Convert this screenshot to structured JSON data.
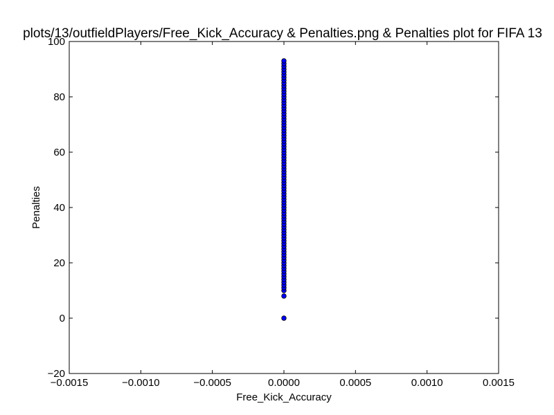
{
  "chart_data": {
    "type": "scatter",
    "title": "plots/13/outfieldPlayers/Free_Kick_Accuracy & Penalties.png & Penalties plot for FIFA 13",
    "xlabel": "Free_Kick_Accuracy",
    "ylabel": "Penalties",
    "xlim": [
      -0.0015,
      0.0015
    ],
    "ylim": [
      -20,
      100
    ],
    "xticks": [
      "−0.0015",
      "−0.0010",
      "−0.0005",
      "0.0000",
      "0.0005",
      "0.0010",
      "0.0015"
    ],
    "yticks": [
      "−20",
      "0",
      "20",
      "40",
      "60",
      "80",
      "100"
    ],
    "xtick_values": [
      -0.0015,
      -0.001,
      -0.0005,
      0,
      0.0005,
      0.001,
      0.0015
    ],
    "ytick_values": [
      -20,
      0,
      20,
      40,
      60,
      80,
      100
    ],
    "grid": false,
    "marker_color": "#0000ff",
    "marker_edge_color": "#000000",
    "series": [
      {
        "x": [
          0,
          0,
          0,
          0,
          0,
          0,
          0,
          0,
          0,
          0,
          0,
          0,
          0,
          0,
          0,
          0,
          0,
          0,
          0,
          0,
          0,
          0,
          0,
          0,
          0,
          0,
          0,
          0,
          0,
          0,
          0,
          0,
          0,
          0,
          0,
          0,
          0,
          0,
          0,
          0,
          0,
          0,
          0,
          0,
          0,
          0,
          0,
          0,
          0,
          0,
          0,
          0,
          0,
          0,
          0,
          0,
          0,
          0,
          0,
          0,
          0,
          0,
          0,
          0,
          0,
          0,
          0,
          0,
          0,
          0,
          0,
          0,
          0,
          0,
          0,
          0,
          0,
          0,
          0,
          0,
          0,
          0,
          0,
          0,
          0,
          0
        ],
        "y": [
          0,
          8,
          10,
          11,
          12,
          13,
          14,
          15,
          16,
          17,
          18,
          19,
          20,
          21,
          22,
          23,
          24,
          25,
          26,
          27,
          28,
          29,
          30,
          31,
          32,
          33,
          34,
          35,
          36,
          37,
          38,
          39,
          40,
          41,
          42,
          43,
          44,
          45,
          46,
          47,
          48,
          49,
          50,
          51,
          52,
          53,
          54,
          55,
          56,
          57,
          58,
          59,
          60,
          61,
          62,
          63,
          64,
          65,
          66,
          67,
          68,
          69,
          70,
          71,
          72,
          73,
          74,
          75,
          76,
          77,
          78,
          79,
          80,
          81,
          82,
          83,
          84,
          85,
          86,
          87,
          88,
          89,
          90,
          91,
          92,
          93
        ]
      }
    ]
  }
}
